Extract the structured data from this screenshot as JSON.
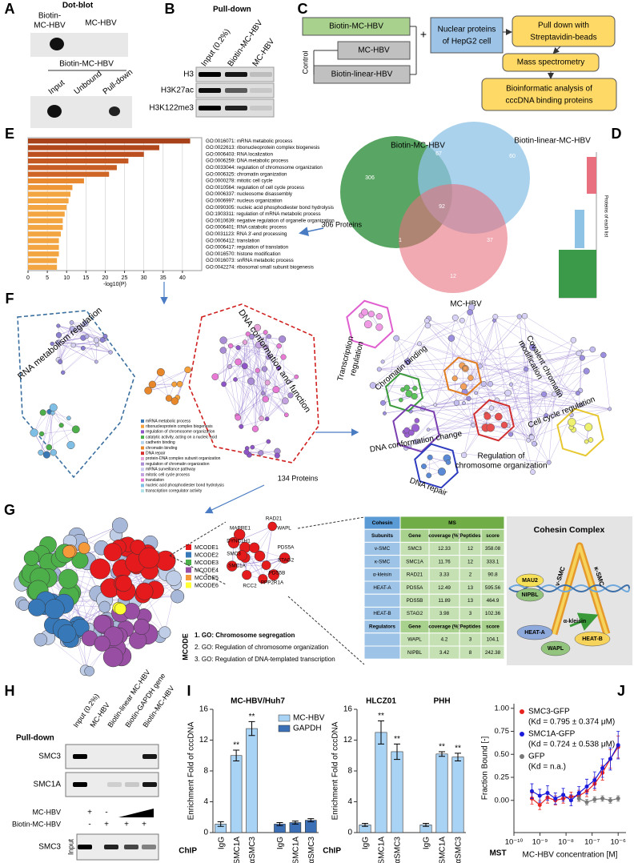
{
  "panel_labels": [
    "A",
    "B",
    "C",
    "D",
    "E",
    "F",
    "G",
    "H",
    "I",
    "J"
  ],
  "A": {
    "title": "Dot-blot",
    "top": [
      "Biotin-",
      "MC-HBV",
      "MC-HBV"
    ],
    "sample": "Biotin-MC-HBV",
    "lanes": [
      "Input",
      "Unbound",
      "Pull-down"
    ]
  },
  "B": {
    "title": "Pull-down",
    "lanes": [
      "Input (0.2%)",
      "Biotin-MC-HBV",
      "MC-HBV"
    ],
    "rows": [
      "H3",
      "H3K27ac",
      "H3K122me3"
    ]
  },
  "C": {
    "sets": [
      "Biotin-MC-HBV",
      "MC-HBV",
      "Biotin-linear-HBV"
    ],
    "control": "Control",
    "plus": "+",
    "nuclear": [
      "Nuclear proteins",
      "of HepG2 cell"
    ],
    "steps": [
      [
        "Pull down with",
        "Streptavidin-beads"
      ],
      [
        "Mass spectrometry"
      ],
      [
        "Bioinformatic analysis of",
        "cccDNA binding proteins"
      ]
    ]
  },
  "D": {
    "sets": [
      "Biotin-MC-HBV",
      "Biotin-linear-MC-HBV",
      "MC-HBV"
    ],
    "counts": [
      306,
      67,
      60,
      92,
      1,
      37,
      12
    ],
    "arrow_label": "306 Proteins",
    "inset_label": "Proteins of each list"
  },
  "E": {
    "type": "bar",
    "orientation": "horizontal",
    "terms": [
      "GO:0016071: mRNA metabolic process",
      "GO:0022613: ribonucleoprotein complex biogenesis",
      "GO:0006403: RNA localization",
      "GO:0006259: DNA metabolic process",
      "GO:0033044: regulation of chromosome organization",
      "GO:0006325: chromatin organization",
      "GO:0000278: mitotic cell cycle",
      "GO:0010564: regulation of cell cycle process",
      "GO:0006337: nucleosome disassembly",
      "GO:0006997: nucleus organization",
      "GO:0090305: nucleic acid phosphodiester bond hydrolysis",
      "GO:1903311: regulation of mRNA metabolic process",
      "GO:0010639: negative regulation of organelle organization",
      "GO:0006401: RNA catabolic process",
      "GO:0031123: RNA 3'-end processing",
      "GO:0006412: translation",
      "GO:0006417: regulation of translation",
      "GO:0016570: histone modification",
      "GO:0016073: snRNA metabolic process",
      "GO:0042274: ribosomal small subunit biogenesis"
    ],
    "values": [
      42,
      34,
      30,
      26,
      23,
      21,
      14.5,
      11.5,
      11,
      10.5,
      10,
      9.5,
      9,
      9,
      8.5,
      8,
      8,
      8,
      7.5,
      7.5
    ],
    "colors": [
      "#a8421a",
      "#b2471c",
      "#bb4f1f",
      "#c45822",
      "#c95e24",
      "#ce6526",
      "#e8892f",
      "#ee9636",
      "#f2a541",
      "#f2a541",
      "#f2a541",
      "#f2a541",
      "#f2a541",
      "#f2a541",
      "#f2a541",
      "#f2a541",
      "#f2a541",
      "#f2a541",
      "#f2a541",
      "#f2a541"
    ],
    "xlim": [
      0,
      45
    ],
    "xticks": [
      0,
      5,
      10,
      15,
      20,
      25,
      30,
      35,
      40
    ],
    "xlabel": "-log10(P)",
    "grid": true
  },
  "F": {
    "left": [
      "RNA metabolism regulation",
      "DNA conformation and function"
    ],
    "count": "134 Proteins",
    "legend": [
      "mRNA metabolic process",
      "ribonucleoprotein complex biogenesis",
      "regulation of chromosome organization",
      "catalytic activity, acting on a nucleic acid",
      "cadherin binding",
      "chromatin binding",
      "DNA repair",
      "protein-DNA complex subunit organization",
      "regulation of chromatin organization",
      "mRNA surveillance pathway",
      "mitotic cell cycle process",
      "translation",
      "nucleic acid phosphodiester bond hydrolysis",
      "transcription coregulator activity"
    ],
    "legend_colors": [
      "#3a78b5",
      "#f5a03a",
      "#8f55c8",
      "#4daf4a",
      "#b4d5f0",
      "#e8862a",
      "#d62f2f",
      "#e6a0d8",
      "#a98bd6",
      "#c8c8f0",
      "#c4a2e0",
      "#e87ad6",
      "#7fbfe6",
      "#b0e0e8"
    ],
    "right": [
      "Transcription",
      "regulation",
      "Chromatin binding",
      "Covalent chromatin",
      "modification",
      "Cell cycle regulation",
      "DNA conformation change",
      "Regulation of",
      "chromosome organization",
      "DNA repair"
    ]
  },
  "G": {
    "mcode_legend": [
      "MCODE1",
      "MCODE2",
      "MCODE3",
      "MCODE4",
      "MCODE5",
      "MCODE6"
    ],
    "mcode_colors": [
      "#e41a1c",
      "#3778b8",
      "#4daf4a",
      "#984ea3",
      "#f59a3b",
      "#ffff33"
    ],
    "genes": [
      "RAD21",
      "MAPRE1",
      "WAPL",
      "DYNC1H1",
      "PDS5A",
      "SMC3",
      "STAG2",
      "SMC1A",
      "PDS5B",
      "PPP2R1A",
      "RCC2"
    ],
    "mcode": "MCODE",
    "go": [
      "1. GO: Chromosome segregation",
      "2. GO: Regulation of chromosome organization",
      "3. GO: Regulation of DNA-templated transcription"
    ],
    "table": {
      "header": [
        "Cohesin",
        "MS"
      ],
      "rows": [
        [
          "Subunits",
          "Gene",
          "coverage (%)",
          "Peptides",
          "score"
        ],
        [
          "v-SMC",
          "SMC3",
          12.33,
          12,
          358.08
        ],
        [
          "κ-SMC",
          "SMC1A",
          11.76,
          12,
          333.1
        ],
        [
          "α-kleisin",
          "RAD21",
          3.33,
          2,
          90.8
        ],
        [
          "HEAT-A",
          "PDS5A",
          12.49,
          13,
          595.56
        ],
        [
          null,
          "PDS5B",
          11.89,
          13,
          464.9
        ],
        [
          "HEAT-B",
          "STAG2",
          3.98,
          3,
          102.36
        ],
        [
          "Regulators",
          "Gene",
          "coverage (%)",
          "Peptides",
          "score"
        ],
        [
          null,
          "WAPL",
          4.2,
          3,
          104.1
        ],
        [
          null,
          "NIPBL",
          3.42,
          8,
          242.38
        ]
      ]
    },
    "complex": {
      "title": "Cohesin Complex",
      "parts": [
        "ν-SMC",
        "κ-SMC",
        "MAU2",
        "NIPBL",
        "α-kleisin",
        "HEAT-A",
        "HEAT-B",
        "WAPL"
      ]
    }
  },
  "H": {
    "lanes": [
      "Input (0.2%)",
      "MC-HBV",
      "Biotin-linear MC-HBV",
      "Biotin-GAPDH gene",
      "Biotin-MC-HBV"
    ],
    "title": "Pull-down",
    "rows": [
      "SMC3",
      "SMC1A"
    ],
    "comp_rows": [
      {
        "label": "MC-HBV",
        "signs": [
          "+",
          "-"
        ]
      },
      {
        "label": "Biotin-MC-HBV",
        "signs": [
          "-",
          "+",
          "+",
          "+"
        ]
      }
    ],
    "input": "Input",
    "bottom_row": "SMC3"
  },
  "I": {
    "charts": [
      {
        "type": "bar",
        "title": "MC-HBV/Huh7",
        "ylabel": "Enrichment Fold of cccDNA",
        "xlabel": "ChIP",
        "categories": [
          "IgG",
          "αSMC1A",
          "αSMC3",
          "IgG",
          "αSMC1A",
          "αSMC3"
        ],
        "ylim": [
          0,
          16
        ],
        "yticks": [
          0,
          4,
          8,
          12,
          16
        ],
        "series": [
          {
            "name": "MC-HBV",
            "color": "#a9d3f5",
            "values": [
              1.1,
              10,
              13.5,
              null,
              null,
              null
            ],
            "errors": [
              0.3,
              0.7,
              0.9,
              null,
              null,
              null
            ]
          },
          {
            "name": "GAPDH",
            "color": "#3b6fb6",
            "values": [
              null,
              null,
              null,
              1.1,
              1.3,
              1.6
            ],
            "errors": [
              null,
              null,
              null,
              0.2,
              0.2,
              0.2
            ]
          }
        ],
        "significance": [
          null,
          "**",
          "**",
          null,
          null,
          null
        ]
      },
      {
        "type": "bar",
        "groups": [
          "HLCZ01",
          "PHH"
        ],
        "ylabel": "Enrichment Fold of cccDNA",
        "xlabel": "ChIP",
        "categories": [
          "IgG",
          "αSMC1A",
          "αSMC3",
          "IgG",
          "αSMC1A",
          "αSMC3"
        ],
        "ylim": [
          0,
          16
        ],
        "yticks": [
          0,
          4,
          8,
          12,
          16
        ],
        "series": [
          {
            "color": "#a9d3f5",
            "values": [
              1,
              13,
              10.5,
              1,
              10.2,
              9.8
            ],
            "errors": [
              0.2,
              1.5,
              1,
              0.2,
              0.3,
              0.5
            ]
          }
        ],
        "significance": [
          null,
          "**",
          "**",
          null,
          "**",
          "**"
        ]
      }
    ]
  },
  "J": {
    "type": "scatter",
    "ylabel": "Fraction Bound [-]",
    "xlabel": "MC-HBV concentration [M]",
    "method": "MST",
    "log_x": true,
    "xlim": [
      1e-10,
      2e-06
    ],
    "ylim": [
      -0.35,
      1.05
    ],
    "xticks": [
      {
        "value": 1e-10,
        "label": "10⁻¹⁰"
      },
      {
        "value": 1e-09,
        "label": "10⁻⁹"
      },
      {
        "value": 1e-08,
        "label": "10⁻⁸"
      },
      {
        "value": 1e-07,
        "label": "10⁻⁷"
      },
      {
        "value": 1e-06,
        "label": "10⁻⁶"
      }
    ],
    "yticks": [
      {
        "value": 0,
        "label": "0.00"
      },
      {
        "value": 0.25,
        "label": "0.25"
      },
      {
        "value": 0.5,
        "label": "0.50"
      },
      {
        "value": 0.75,
        "label": "0.75"
      },
      {
        "value": 1,
        "label": "1.00"
      }
    ],
    "x": [
      4.9e-10,
      9.8e-10,
      1.95e-09,
      3.9e-09,
      7.8e-09,
      1.56e-08,
      3.13e-08,
      6.25e-08,
      1.25e-07,
      2.5e-07,
      5e-07,
      1e-06
    ],
    "series": [
      {
        "name": "SMC3-GFP",
        "kd_label": "(Kd = 0.795 ± 0.374 μM)",
        "color": "#e8231f",
        "values": [
          0.02,
          -0.05,
          0.03,
          0,
          0.02,
          0.04,
          0.05,
          0.1,
          0.18,
          0.3,
          0.45,
          0.58
        ],
        "errors": [
          0.06,
          0.05,
          0.06,
          0.05,
          0.05,
          0.05,
          0.06,
          0.06,
          0.07,
          0.08,
          0.1,
          0.12
        ]
      },
      {
        "name": "SMC1A-GFP",
        "kd_label": "(Kd = 0.724 ± 0.538 μM)",
        "color": "#1a1adb",
        "values": [
          0.1,
          0.05,
          0.08,
          0.02,
          0.06,
          0,
          0.08,
          0.15,
          0.22,
          0.35,
          0.45,
          0.6
        ],
        "errors": [
          0.08,
          0.07,
          0.08,
          0.06,
          0.07,
          0.06,
          0.07,
          0.08,
          0.09,
          0.1,
          0.12,
          0.15
        ]
      },
      {
        "name": "GFP",
        "kd_label": "(Kd = n.a.)",
        "color": "#777777",
        "values": [
          null,
          null,
          null,
          null,
          null,
          null,
          0.02,
          -0.02,
          0.01,
          0.02,
          0,
          0.02
        ],
        "errors": [
          null,
          null,
          null,
          null,
          null,
          null,
          0.03,
          0.03,
          0.03,
          0.03,
          0.03,
          0.03
        ]
      }
    ]
  }
}
